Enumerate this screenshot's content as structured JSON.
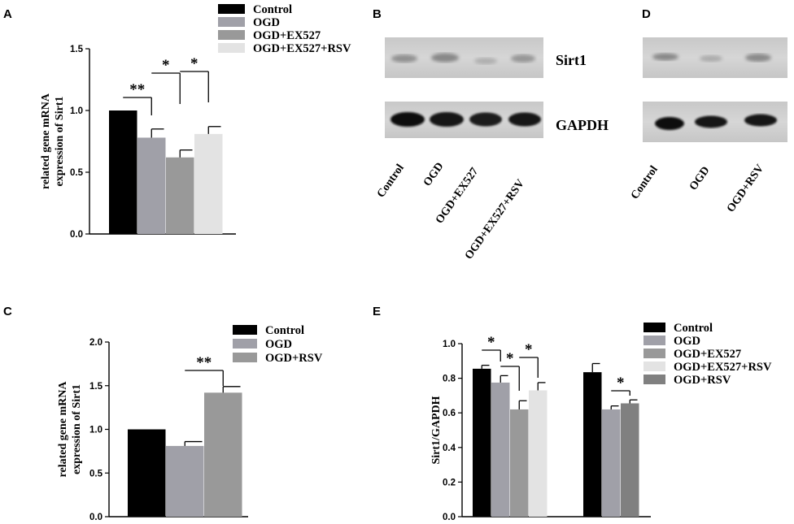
{
  "panels": {
    "A": {
      "letter": "A",
      "chart_data": {
        "type": "bar",
        "ylabel": [
          "related gene mRNA",
          "expression of Sirt1"
        ],
        "ylim": [
          0,
          1.5
        ],
        "yticks": [
          "0.0",
          "0.5",
          "1.0",
          "1.5"
        ],
        "categories": [
          "Control",
          "OGD",
          "OGD+EX527",
          "OGD+EX527+RSV"
        ],
        "values": [
          1.0,
          0.78,
          0.62,
          0.81
        ],
        "errors": [
          0,
          0.07,
          0.06,
          0.06
        ],
        "colors": [
          "#000000",
          "#a0a0a8",
          "#999999",
          "#e3e3e3"
        ],
        "legend": [
          "Control",
          "OGD",
          "OGD+EX527",
          "OGD+EX527+RSV"
        ],
        "significance": [
          {
            "from": 0,
            "to": 1,
            "label": "**"
          },
          {
            "from": 1,
            "to": 2,
            "label": "*"
          },
          {
            "from": 2,
            "to": 3,
            "label": "*"
          }
        ]
      }
    },
    "B": {
      "letter": "B",
      "bands": [
        "Sirt1",
        "GAPDH"
      ],
      "lanes": [
        "Control",
        "OGD",
        "OGD+EX527",
        "OGD+EX527+RSV"
      ]
    },
    "C": {
      "letter": "C",
      "chart_data": {
        "type": "bar",
        "ylabel": [
          "related gene mRNA",
          "expression of Sirt1"
        ],
        "ylim": [
          0,
          2.0
        ],
        "yticks": [
          "0.0",
          "0.5",
          "1.0",
          "1.5",
          "2.0"
        ],
        "categories": [
          "Control",
          "OGD",
          "OGD+RSV"
        ],
        "values": [
          1.0,
          0.81,
          1.42
        ],
        "errors": [
          0,
          0.05,
          0.07
        ],
        "colors": [
          "#000000",
          "#a0a0a8",
          "#999999"
        ],
        "legend": [
          "Control",
          "OGD",
          "OGD+RSV"
        ],
        "significance": [
          {
            "from": 1,
            "to": 2,
            "label": "**"
          }
        ]
      }
    },
    "D": {
      "letter": "D",
      "lanes": [
        "Control",
        "OGD",
        "OGD+RSV"
      ]
    },
    "E": {
      "letter": "E",
      "chart_data": {
        "type": "bar",
        "ylabel": [
          "Sirt1/GAPDH"
        ],
        "ylim": [
          0,
          1.0
        ],
        "yticks": [
          "0.0",
          "0.2",
          "0.4",
          "0.6",
          "0.8",
          "1.0"
        ],
        "groups": [
          {
            "categories": [
              "Control",
              "OGD",
              "OGD+EX527",
              "OGD+EX527+RSV"
            ],
            "values": [
              0.855,
              0.775,
              0.62,
              0.73
            ],
            "errors": [
              0.02,
              0.04,
              0.05,
              0.045
            ],
            "colors": [
              "#000000",
              "#a0a0a8",
              "#999999",
              "#e3e3e3"
            ]
          },
          {
            "categories": [
              "Control",
              "OGD",
              "OGD+RSV"
            ],
            "values": [
              0.835,
              0.62,
              0.655
            ],
            "errors": [
              0.05,
              0.02,
              0.02
            ],
            "colors": [
              "#000000",
              "#a0a0a8",
              "#808080"
            ]
          }
        ],
        "legend": [
          "Control",
          "OGD",
          "OGD+EX527",
          "OGD+EX527+RSV",
          "OGD+RSV"
        ],
        "legend_colors": [
          "#000000",
          "#a0a0a8",
          "#999999",
          "#e3e3e3",
          "#808080"
        ],
        "significance": [
          {
            "group": 0,
            "from": 0,
            "to": 1,
            "label": "*"
          },
          {
            "group": 0,
            "from": 1,
            "to": 2,
            "label": "*"
          },
          {
            "group": 0,
            "from": 2,
            "to": 3,
            "label": "*"
          },
          {
            "group": 1,
            "from": 1,
            "to": 2,
            "label": "*"
          }
        ]
      }
    }
  }
}
